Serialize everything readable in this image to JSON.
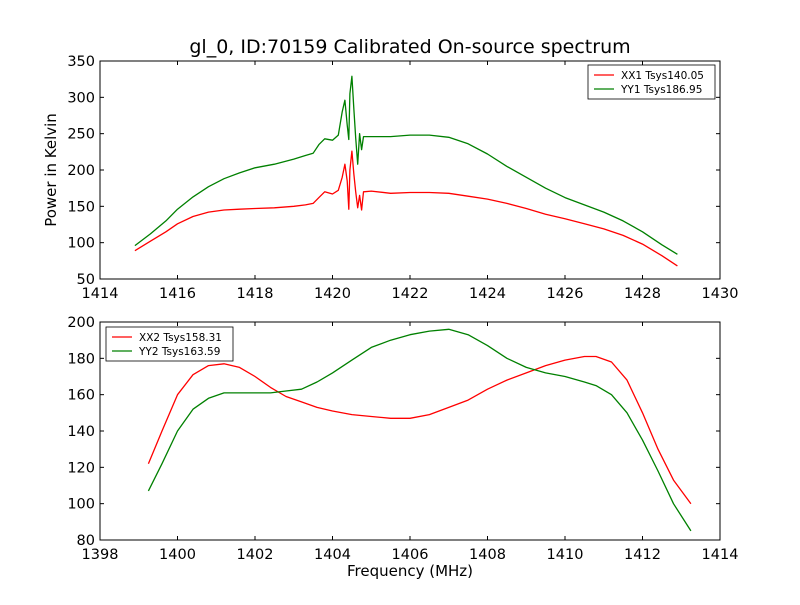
{
  "figure": {
    "title": "gl_0, ID:70159 Calibrated On-source spectrum"
  },
  "chart_data": [
    {
      "type": "line",
      "title": "gl_0, ID:70159 Calibrated On-source spectrum",
      "xlabel": "",
      "ylabel": "Power in Kelvin",
      "xlim": [
        1414,
        1430
      ],
      "ylim": [
        50,
        350
      ],
      "xticks": [
        1414,
        1416,
        1418,
        1420,
        1422,
        1424,
        1426,
        1428,
        1430
      ],
      "yticks": [
        50,
        100,
        150,
        200,
        250,
        300,
        350
      ],
      "grid": false,
      "legend_position": "top-right",
      "series": [
        {
          "name": "XX1 Tsys140.05",
          "color": "#ff0000",
          "x": [
            1414.9,
            1415.3,
            1415.7,
            1416.0,
            1416.4,
            1416.8,
            1417.2,
            1417.6,
            1418.0,
            1418.5,
            1419.0,
            1419.3,
            1419.5,
            1419.65,
            1419.8,
            1420.0,
            1420.15,
            1420.25,
            1420.32,
            1420.38,
            1420.42,
            1420.45,
            1420.5,
            1420.55,
            1420.6,
            1420.65,
            1420.7,
            1420.75,
            1420.8,
            1421.0,
            1421.5,
            1422.0,
            1422.5,
            1423.0,
            1423.5,
            1424.0,
            1424.5,
            1425.0,
            1425.5,
            1426.0,
            1426.5,
            1427.0,
            1427.5,
            1428.0,
            1428.5,
            1428.9
          ],
          "y": [
            89,
            102,
            115,
            126,
            136,
            142,
            145,
            146,
            147,
            148,
            150,
            152,
            154,
            162,
            170,
            167,
            172,
            190,
            208,
            185,
            146,
            200,
            226,
            195,
            170,
            148,
            165,
            145,
            170,
            171,
            168,
            169,
            169,
            168,
            164,
            160,
            154,
            147,
            139,
            133,
            126,
            119,
            110,
            98,
            82,
            68
          ]
        },
        {
          "name": "YY1 Tsys186.95",
          "color": "#008000",
          "x": [
            1414.9,
            1415.3,
            1415.7,
            1416.0,
            1416.4,
            1416.8,
            1417.2,
            1417.6,
            1418.0,
            1418.5,
            1419.0,
            1419.3,
            1419.5,
            1419.65,
            1419.8,
            1420.0,
            1420.15,
            1420.25,
            1420.32,
            1420.38,
            1420.42,
            1420.45,
            1420.5,
            1420.55,
            1420.6,
            1420.65,
            1420.7,
            1420.75,
            1420.8,
            1421.0,
            1421.5,
            1422.0,
            1422.5,
            1423.0,
            1423.5,
            1424.0,
            1424.5,
            1425.0,
            1425.5,
            1426.0,
            1426.5,
            1427.0,
            1427.5,
            1428.0,
            1428.5,
            1428.9
          ],
          "y": [
            96,
            112,
            130,
            146,
            163,
            177,
            188,
            196,
            203,
            208,
            215,
            220,
            223,
            235,
            243,
            241,
            248,
            280,
            296,
            262,
            242,
            305,
            329,
            285,
            244,
            208,
            250,
            228,
            246,
            246,
            246,
            248,
            248,
            245,
            236,
            222,
            205,
            190,
            175,
            162,
            152,
            142,
            130,
            115,
            97,
            84
          ]
        }
      ]
    },
    {
      "type": "line",
      "title": "",
      "xlabel": "Frequency (MHz)",
      "ylabel": "",
      "xlim": [
        1398,
        1414
      ],
      "ylim": [
        80,
        200
      ],
      "xticks": [
        1398,
        1400,
        1402,
        1404,
        1406,
        1408,
        1410,
        1412,
        1414
      ],
      "yticks": [
        80,
        100,
        120,
        140,
        160,
        180,
        200
      ],
      "grid": false,
      "legend_position": "top-left",
      "series": [
        {
          "name": "XX2 Tsys158.31",
          "color": "#ff0000",
          "x": [
            1399.25,
            1399.6,
            1400.0,
            1400.4,
            1400.8,
            1401.2,
            1401.6,
            1402.0,
            1402.4,
            1402.8,
            1403.2,
            1403.6,
            1404.0,
            1404.5,
            1405.0,
            1405.5,
            1406.0,
            1406.5,
            1407.0,
            1407.5,
            1408.0,
            1408.5,
            1409.0,
            1409.5,
            1410.0,
            1410.5,
            1410.8,
            1411.2,
            1411.6,
            1412.0,
            1412.4,
            1412.8,
            1413.25
          ],
          "y": [
            122,
            140,
            160,
            171,
            176,
            177,
            175,
            170,
            164,
            159,
            156,
            153,
            151,
            149,
            148,
            147,
            147,
            149,
            153,
            157,
            163,
            168,
            172,
            176,
            179,
            181,
            181,
            178,
            168,
            150,
            130,
            113,
            100
          ]
        },
        {
          "name": "YY2 Tsys163.59",
          "color": "#008000",
          "x": [
            1399.25,
            1399.6,
            1400.0,
            1400.4,
            1400.8,
            1401.2,
            1401.6,
            1402.0,
            1402.4,
            1402.8,
            1403.2,
            1403.6,
            1404.0,
            1404.5,
            1405.0,
            1405.5,
            1406.0,
            1406.5,
            1407.0,
            1407.5,
            1408.0,
            1408.5,
            1409.0,
            1409.5,
            1410.0,
            1410.5,
            1410.8,
            1411.2,
            1411.6,
            1412.0,
            1412.4,
            1412.8,
            1413.25
          ],
          "y": [
            107,
            122,
            140,
            152,
            158,
            161,
            161,
            161,
            161,
            162,
            163,
            167,
            172,
            179,
            186,
            190,
            193,
            195,
            196,
            193,
            187,
            180,
            175,
            172,
            170,
            167,
            165,
            160,
            150,
            135,
            118,
            100,
            85
          ]
        }
      ]
    }
  ]
}
